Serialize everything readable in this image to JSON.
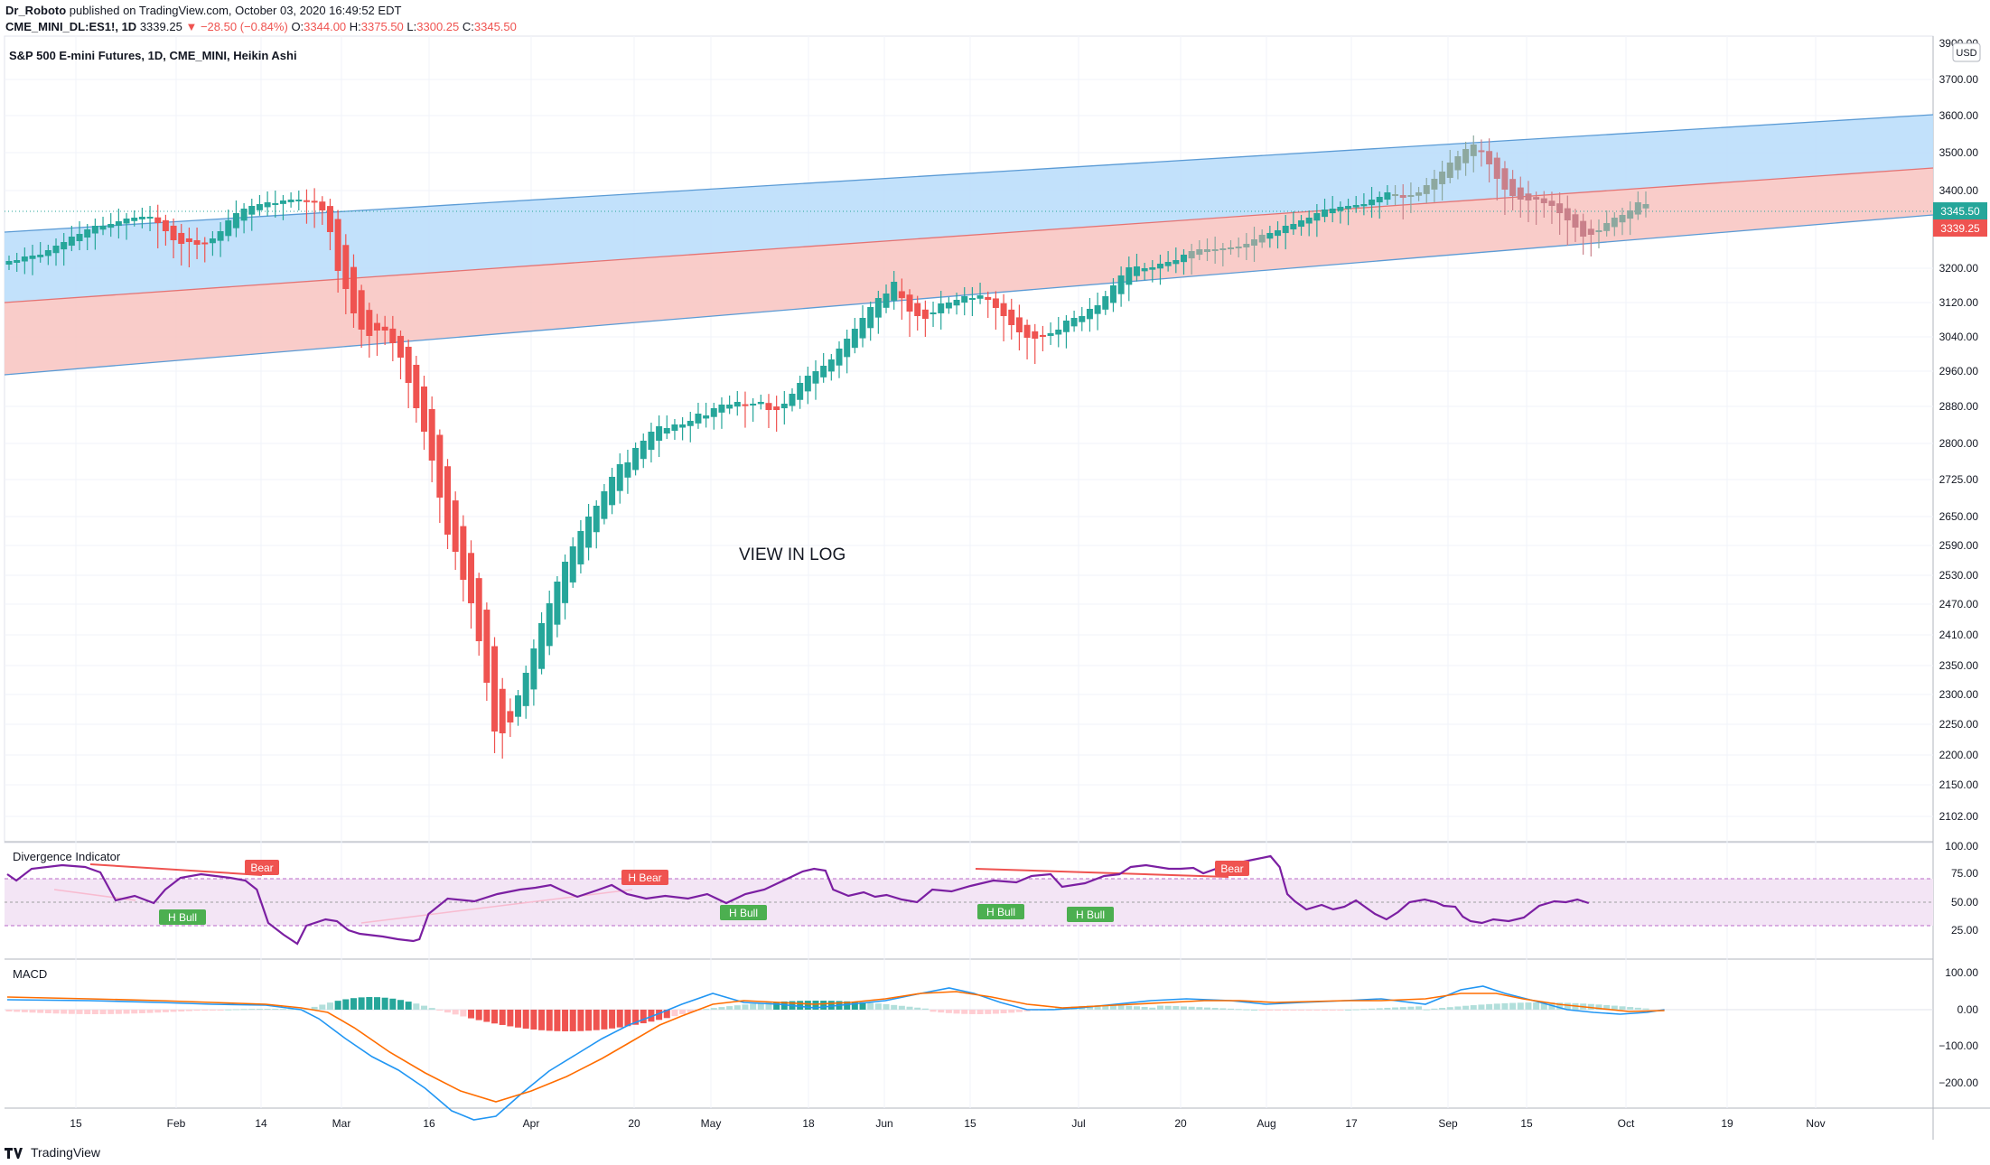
{
  "header": {
    "author": "Dr_Roboto",
    "published": "published on TradingView.com, October 03, 2020 16:49:52 EDT",
    "symbol": "CME_MINI_DL:ES1!, 1D",
    "price": "3339.25",
    "change": "−28.50 (−0.84%)",
    "o_label": "O:",
    "o": "3344.00",
    "h_label": "H:",
    "h": "3375.50",
    "l_label": "L:",
    "l": "3300.25",
    "c_label": "C:",
    "c": "3345.50"
  },
  "chart": {
    "title": "S&P 500 E-mini Futures, 1D, CME_MINI, Heikin Ashi",
    "currency": "USD",
    "annotation": "VIEW IN LOG",
    "price_labels": [
      "3900.00",
      "3700.00",
      "3600.00",
      "3500.00",
      "3400.00",
      "3200.00",
      "3120.00",
      "3040.00",
      "2960.00",
      "2880.00",
      "2800.00",
      "2725.00",
      "2650.00",
      "2590.00",
      "2530.00",
      "2470.00",
      "2410.00",
      "2350.00",
      "2300.00",
      "2250.00",
      "2200.00",
      "2150.00",
      "2102.00"
    ],
    "current_price_tag": "3345.50",
    "last_price_tag": "3339.25",
    "colors": {
      "up": "#26a69a",
      "down": "#ef5350",
      "channel_upper": "#bbdefb",
      "channel_lower": "#f8c6c3",
      "up_faded": "#8da89f",
      "down_faded": "#c9808a"
    }
  },
  "divergence": {
    "title": "Divergence Indicator",
    "axis_labels": [
      "100.00",
      "75.00",
      "50.00",
      "25.00"
    ],
    "tags": [
      {
        "text": "Bear",
        "type": "bear"
      },
      {
        "text": "H Bear",
        "type": "bear"
      },
      {
        "text": "Bear",
        "type": "bear"
      },
      {
        "text": "H Bull",
        "type": "bull"
      },
      {
        "text": "H Bull",
        "type": "bull"
      },
      {
        "text": "H Bull",
        "type": "bull"
      },
      {
        "text": "H Bull",
        "type": "bull"
      }
    ]
  },
  "macd": {
    "title": "MACD",
    "axis_labels": [
      "100.00",
      "0.00",
      "−100.00",
      "−200.00"
    ]
  },
  "time_axis": [
    "15",
    "Feb",
    "14",
    "Mar",
    "16",
    "Apr",
    "20",
    "May",
    "18",
    "Jun",
    "15",
    "Jul",
    "20",
    "Aug",
    "17",
    "Sep",
    "15",
    "Oct",
    "19",
    "Nov"
  ],
  "footer": {
    "brand": "TradingView"
  }
}
